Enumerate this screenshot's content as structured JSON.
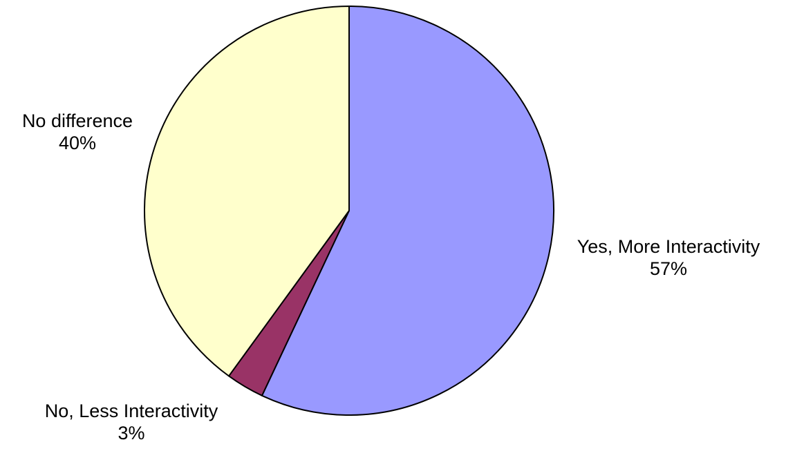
{
  "chart_data": {
    "type": "pie",
    "categories": [
      "Yes, More Interactivity",
      "No, Less Interactivity",
      "No difference"
    ],
    "values": [
      57,
      3,
      40
    ],
    "value_labels": [
      "57%",
      "3%",
      "40%"
    ],
    "colors": [
      "#9999FF",
      "#993366",
      "#FFFFCC"
    ],
    "start": "12 o'clock",
    "direction": "clockwise",
    "legend": "none",
    "title": ""
  }
}
